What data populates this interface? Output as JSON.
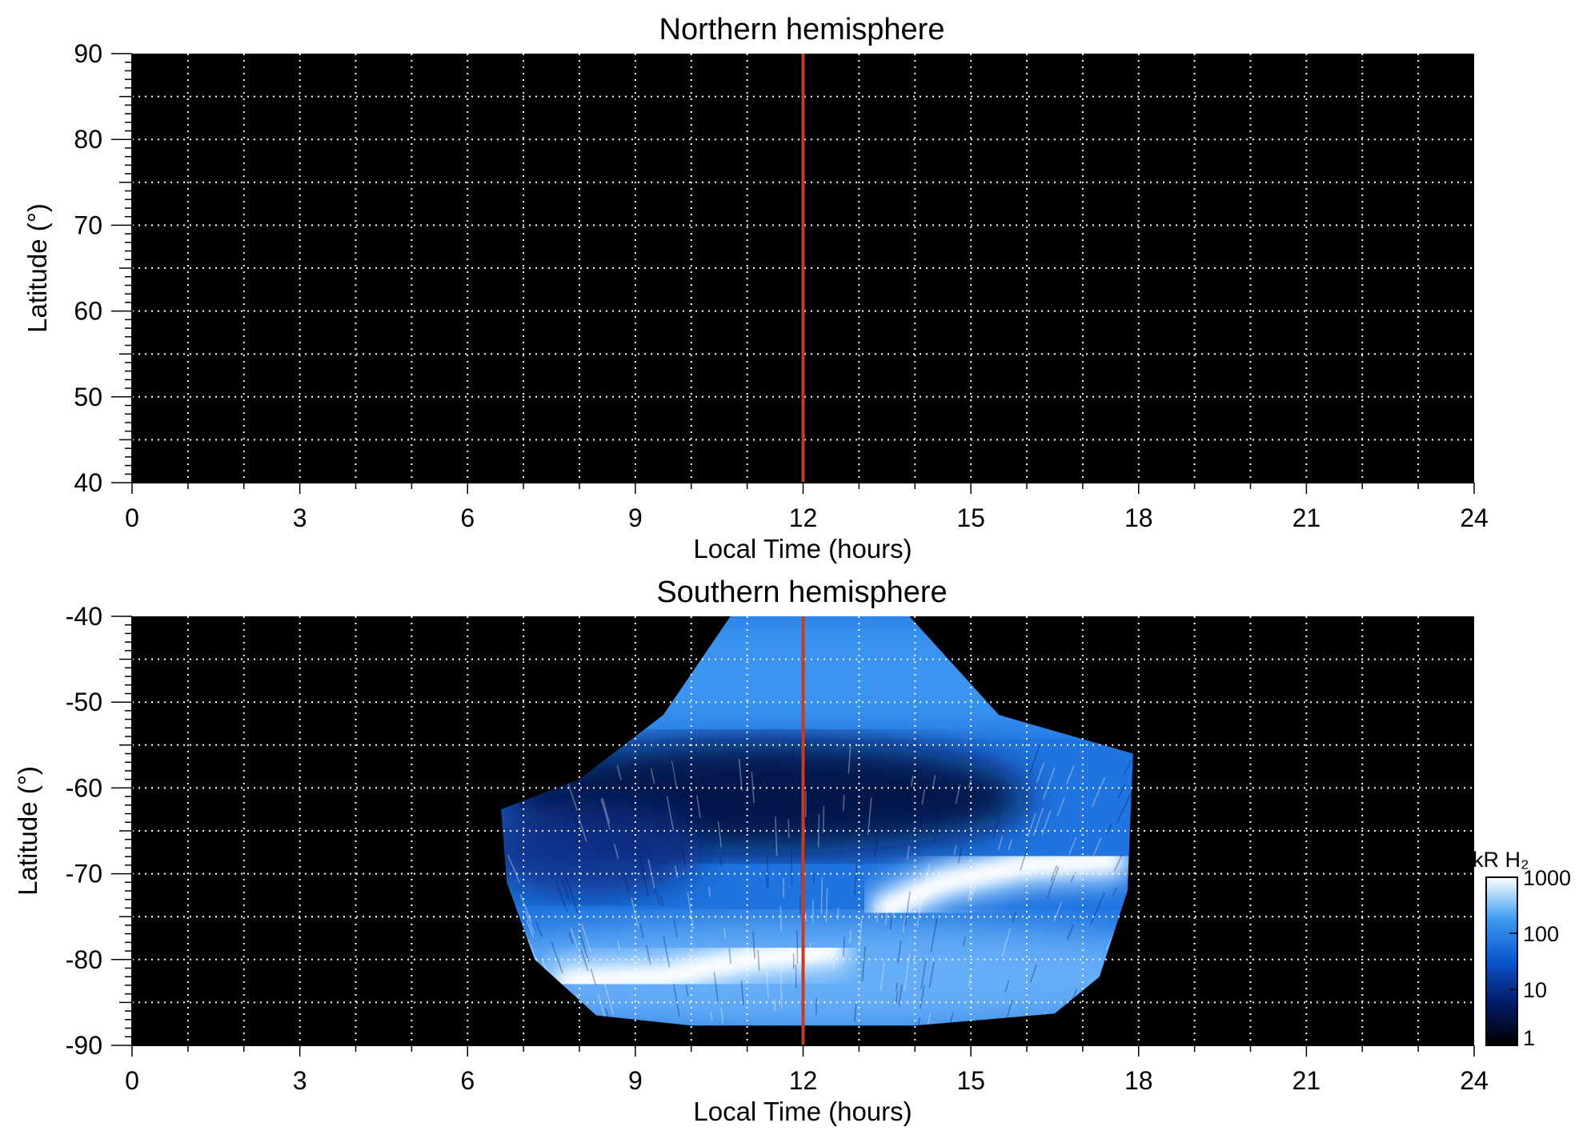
{
  "chart_data": [
    {
      "type": "heatmap",
      "title": "Northern hemisphere",
      "xlabel": "Local Time (hours)",
      "ylabel": "Latitude (°)",
      "xlim": [
        0,
        24
      ],
      "ylim": [
        40,
        90
      ],
      "x_ticks": [
        "0",
        "3",
        "6",
        "9",
        "12",
        "15",
        "18",
        "21",
        "24"
      ],
      "y_ticks": [
        "90",
        "80",
        "70",
        "60",
        "50",
        "40"
      ],
      "background": "#000000",
      "grid": "dotted white, every 1 hour and every 5 degrees",
      "marker_line": {
        "x": 12,
        "color": "#cc3a1e"
      },
      "emission_region": null
    },
    {
      "type": "heatmap",
      "title": "Southern hemisphere",
      "xlabel": "Local Time (hours)",
      "ylabel": "Latitude (°)",
      "xlim": [
        0,
        24
      ],
      "ylim": [
        -90,
        -40
      ],
      "x_ticks": [
        "0",
        "3",
        "6",
        "9",
        "12",
        "15",
        "18",
        "21",
        "24"
      ],
      "y_ticks": [
        "-40",
        "-50",
        "-60",
        "-70",
        "-80",
        "-90"
      ],
      "background": "#000000",
      "grid": "dotted white, every 1 hour and every 5 degrees",
      "marker_line": {
        "x": 12,
        "color": "#cc3a1e"
      },
      "emission_region": {
        "outline": [
          [
            10.7,
            -40
          ],
          [
            13.9,
            -40
          ],
          [
            15.5,
            -51.5
          ],
          [
            17.9,
            -56
          ],
          [
            17.8,
            -72
          ],
          [
            17.3,
            -82
          ],
          [
            16.5,
            -86.3
          ],
          [
            14,
            -87.7
          ],
          [
            10,
            -87.7
          ],
          [
            8.3,
            -86.5
          ],
          [
            7.2,
            -80
          ],
          [
            6.7,
            -71
          ],
          [
            6.6,
            -62.5
          ],
          [
            8.0,
            -59
          ],
          [
            9.5,
            -51.5
          ]
        ],
        "bright_arcs": [
          {
            "note": "dawn arc",
            "points": [
              [
                7.8,
                -82.5
              ],
              [
                9.5,
                -82
              ],
              [
                11,
                -80
              ],
              [
                12.5,
                -79
              ]
            ]
          },
          {
            "note": "afternoon arc",
            "points": [
              [
                13.5,
                -74
              ],
              [
                14.5,
                -71
              ],
              [
                16,
                -69
              ],
              [
                17.5,
                -68.5
              ]
            ]
          }
        ]
      },
      "colorbar": {
        "label": "kR H₂",
        "scale": "log",
        "ticks": [
          "1000",
          "100",
          "10",
          "1"
        ],
        "colors": [
          "#000000",
          "#001a66",
          "#0a55cc",
          "#3c9cf0",
          "#ffffff"
        ]
      }
    }
  ]
}
